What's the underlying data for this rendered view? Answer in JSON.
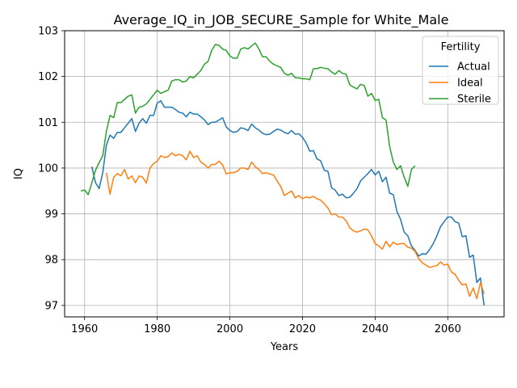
{
  "chart_data": {
    "type": "line",
    "title": "Average_IQ_in_JOB_SECURE_Sample for White_Male",
    "xlabel": "Years",
    "ylabel": "IQ",
    "xlim": [
      1954.5,
      2075.5
    ],
    "ylim": [
      96.75,
      103
    ],
    "x_ticks": [
      1960,
      1980,
      2000,
      2020,
      2040,
      2060
    ],
    "y_ticks": [
      97,
      98,
      99,
      100,
      101,
      102,
      103
    ],
    "grid": true,
    "legend": {
      "title": "Fertility",
      "placement": "top-right"
    },
    "series": [
      {
        "name": "Actual",
        "color": "#1f77b4",
        "points": [
          [
            1962,
            100.03
          ],
          [
            1963,
            99.68
          ],
          [
            1964,
            99.55
          ],
          [
            1965,
            99.9
          ],
          [
            1966,
            100.5
          ],
          [
            1967,
            100.72
          ],
          [
            1968,
            100.65
          ],
          [
            1969,
            100.78
          ],
          [
            1970,
            100.78
          ],
          [
            1971,
            100.88
          ],
          [
            1972,
            100.98
          ],
          [
            1973,
            101.08
          ],
          [
            1974,
            100.8
          ],
          [
            1975,
            100.98
          ],
          [
            1976,
            101.08
          ],
          [
            1977,
            100.98
          ],
          [
            1978,
            101.15
          ],
          [
            1979,
            101.15
          ],
          [
            1980,
            101.42
          ],
          [
            1981,
            101.47
          ],
          [
            1982,
            101.33
          ],
          [
            1983,
            101.33
          ],
          [
            1984,
            101.33
          ],
          [
            1985,
            101.28
          ],
          [
            1986,
            101.22
          ],
          [
            1987,
            101.2
          ],
          [
            1988,
            101.12
          ],
          [
            1989,
            101.22
          ],
          [
            1990,
            101.18
          ],
          [
            1991,
            101.18
          ],
          [
            1992,
            101.12
          ],
          [
            1993,
            101.05
          ],
          [
            1994,
            100.95
          ],
          [
            1995,
            101.0
          ],
          [
            1996,
            101.0
          ],
          [
            1997,
            101.05
          ],
          [
            1998,
            101.1
          ],
          [
            1999,
            100.9
          ],
          [
            2000,
            100.82
          ],
          [
            2001,
            100.78
          ],
          [
            2002,
            100.8
          ],
          [
            2003,
            100.88
          ],
          [
            2004,
            100.86
          ],
          [
            2005,
            100.82
          ],
          [
            2006,
            100.96
          ],
          [
            2007,
            100.88
          ],
          [
            2008,
            100.83
          ],
          [
            2009,
            100.76
          ],
          [
            2010,
            100.73
          ],
          [
            2011,
            100.74
          ],
          [
            2012,
            100.8
          ],
          [
            2013,
            100.85
          ],
          [
            2014,
            100.83
          ],
          [
            2015,
            100.78
          ],
          [
            2016,
            100.75
          ],
          [
            2017,
            100.82
          ],
          [
            2018,
            100.74
          ],
          [
            2019,
            100.75
          ],
          [
            2020,
            100.67
          ],
          [
            2021,
            100.55
          ],
          [
            2022,
            100.37
          ],
          [
            2023,
            100.38
          ],
          [
            2024,
            100.2
          ],
          [
            2025,
            100.16
          ],
          [
            2026,
            99.95
          ],
          [
            2027,
            99.93
          ],
          [
            2028,
            99.57
          ],
          [
            2029,
            99.52
          ],
          [
            2030,
            99.4
          ],
          [
            2031,
            99.43
          ],
          [
            2032,
            99.35
          ],
          [
            2033,
            99.36
          ],
          [
            2034,
            99.45
          ],
          [
            2035,
            99.55
          ],
          [
            2036,
            99.72
          ],
          [
            2037,
            99.8
          ],
          [
            2038,
            99.88
          ],
          [
            2039,
            99.97
          ],
          [
            2040,
            99.85
          ],
          [
            2041,
            99.93
          ],
          [
            2042,
            99.7
          ],
          [
            2043,
            99.8
          ],
          [
            2044,
            99.45
          ],
          [
            2045,
            99.42
          ],
          [
            2046,
            99.05
          ],
          [
            2047,
            98.88
          ],
          [
            2048,
            98.6
          ],
          [
            2049,
            98.52
          ],
          [
            2050,
            98.3
          ],
          [
            2051,
            98.2
          ],
          [
            2052,
            98.08
          ],
          [
            2053,
            98.13
          ],
          [
            2054,
            98.12
          ],
          [
            2055,
            98.22
          ],
          [
            2056,
            98.35
          ],
          [
            2057,
            98.52
          ],
          [
            2058,
            98.72
          ],
          [
            2059,
            98.83
          ],
          [
            2060,
            98.93
          ],
          [
            2061,
            98.93
          ],
          [
            2062,
            98.83
          ],
          [
            2063,
            98.8
          ],
          [
            2064,
            98.5
          ],
          [
            2065,
            98.52
          ],
          [
            2066,
            98.05
          ],
          [
            2067,
            98.1
          ],
          [
            2068,
            97.5
          ],
          [
            2069,
            97.6
          ],
          [
            2070,
            97.0
          ]
        ]
      },
      {
        "name": "Ideal",
        "color": "#ff7f0e",
        "points": [
          [
            1966,
            99.9
          ],
          [
            1967,
            99.43
          ],
          [
            1968,
            99.8
          ],
          [
            1969,
            99.88
          ],
          [
            1970,
            99.83
          ],
          [
            1971,
            99.97
          ],
          [
            1972,
            99.76
          ],
          [
            1973,
            99.83
          ],
          [
            1974,
            99.68
          ],
          [
            1975,
            99.83
          ],
          [
            1976,
            99.8
          ],
          [
            1977,
            99.67
          ],
          [
            1978,
            100.0
          ],
          [
            1979,
            100.1
          ],
          [
            1980,
            100.15
          ],
          [
            1981,
            100.27
          ],
          [
            1982,
            100.23
          ],
          [
            1983,
            100.25
          ],
          [
            1984,
            100.33
          ],
          [
            1985,
            100.27
          ],
          [
            1986,
            100.3
          ],
          [
            1987,
            100.27
          ],
          [
            1988,
            100.18
          ],
          [
            1989,
            100.37
          ],
          [
            1990,
            100.23
          ],
          [
            1991,
            100.27
          ],
          [
            1992,
            100.13
          ],
          [
            1993,
            100.08
          ],
          [
            1994,
            100.0
          ],
          [
            1995,
            100.08
          ],
          [
            1996,
            100.08
          ],
          [
            1997,
            100.15
          ],
          [
            1998,
            100.07
          ],
          [
            1999,
            99.87
          ],
          [
            2000,
            99.9
          ],
          [
            2001,
            99.9
          ],
          [
            2002,
            99.93
          ],
          [
            2003,
            100.0
          ],
          [
            2004,
            100.0
          ],
          [
            2005,
            99.97
          ],
          [
            2006,
            100.13
          ],
          [
            2007,
            100.03
          ],
          [
            2008,
            99.97
          ],
          [
            2009,
            99.88
          ],
          [
            2010,
            99.9
          ],
          [
            2011,
            99.87
          ],
          [
            2012,
            99.85
          ],
          [
            2013,
            99.72
          ],
          [
            2014,
            99.6
          ],
          [
            2015,
            99.4
          ],
          [
            2016,
            99.45
          ],
          [
            2017,
            99.5
          ],
          [
            2018,
            99.35
          ],
          [
            2019,
            99.4
          ],
          [
            2020,
            99.33
          ],
          [
            2021,
            99.37
          ],
          [
            2022,
            99.35
          ],
          [
            2023,
            99.38
          ],
          [
            2024,
            99.33
          ],
          [
            2025,
            99.3
          ],
          [
            2026,
            99.22
          ],
          [
            2027,
            99.13
          ],
          [
            2028,
            98.98
          ],
          [
            2029,
            99.0
          ],
          [
            2030,
            98.93
          ],
          [
            2031,
            98.93
          ],
          [
            2032,
            98.85
          ],
          [
            2033,
            98.7
          ],
          [
            2034,
            98.63
          ],
          [
            2035,
            98.6
          ],
          [
            2036,
            98.63
          ],
          [
            2037,
            98.67
          ],
          [
            2038,
            98.65
          ],
          [
            2039,
            98.52
          ],
          [
            2040,
            98.35
          ],
          [
            2041,
            98.3
          ],
          [
            2042,
            98.23
          ],
          [
            2043,
            98.4
          ],
          [
            2044,
            98.28
          ],
          [
            2045,
            98.38
          ],
          [
            2046,
            98.33
          ],
          [
            2047,
            98.35
          ],
          [
            2048,
            98.35
          ],
          [
            2049,
            98.27
          ],
          [
            2050,
            98.25
          ],
          [
            2051,
            98.18
          ],
          [
            2052,
            98.02
          ],
          [
            2053,
            97.93
          ],
          [
            2054,
            97.88
          ],
          [
            2055,
            97.83
          ],
          [
            2056,
            97.85
          ],
          [
            2057,
            97.87
          ],
          [
            2058,
            97.95
          ],
          [
            2059,
            97.88
          ],
          [
            2060,
            97.9
          ],
          [
            2061,
            97.73
          ],
          [
            2062,
            97.68
          ],
          [
            2063,
            97.55
          ],
          [
            2064,
            97.45
          ],
          [
            2065,
            97.47
          ],
          [
            2066,
            97.2
          ],
          [
            2067,
            97.38
          ],
          [
            2068,
            97.15
          ],
          [
            2069,
            97.5
          ],
          [
            2070,
            97.25
          ]
        ]
      },
      {
        "name": "Sterile",
        "color": "#2ca02c",
        "points": [
          [
            1959,
            99.5
          ],
          [
            1960,
            99.52
          ],
          [
            1961,
            99.42
          ],
          [
            1962,
            99.68
          ],
          [
            1963,
            99.95
          ],
          [
            1964,
            100.12
          ],
          [
            1965,
            100.27
          ],
          [
            1966,
            100.8
          ],
          [
            1967,
            101.15
          ],
          [
            1968,
            101.1
          ],
          [
            1969,
            101.43
          ],
          [
            1970,
            101.43
          ],
          [
            1971,
            101.5
          ],
          [
            1972,
            101.57
          ],
          [
            1973,
            101.6
          ],
          [
            1974,
            101.2
          ],
          [
            1975,
            101.33
          ],
          [
            1976,
            101.35
          ],
          [
            1977,
            101.4
          ],
          [
            1978,
            101.5
          ],
          [
            1979,
            101.6
          ],
          [
            1980,
            101.7
          ],
          [
            1981,
            101.63
          ],
          [
            1982,
            101.67
          ],
          [
            1983,
            101.7
          ],
          [
            1984,
            101.9
          ],
          [
            1985,
            101.93
          ],
          [
            1986,
            101.93
          ],
          [
            1987,
            101.88
          ],
          [
            1988,
            101.9
          ],
          [
            1989,
            102.0
          ],
          [
            1990,
            101.97
          ],
          [
            1991,
            102.05
          ],
          [
            1992,
            102.13
          ],
          [
            1993,
            102.27
          ],
          [
            1994,
            102.33
          ],
          [
            1995,
            102.57
          ],
          [
            1996,
            102.7
          ],
          [
            1997,
            102.68
          ],
          [
            1998,
            102.6
          ],
          [
            1999,
            102.57
          ],
          [
            2000,
            102.45
          ],
          [
            2001,
            102.4
          ],
          [
            2002,
            102.4
          ],
          [
            2003,
            102.6
          ],
          [
            2004,
            102.63
          ],
          [
            2005,
            102.6
          ],
          [
            2006,
            102.67
          ],
          [
            2007,
            102.73
          ],
          [
            2008,
            102.6
          ],
          [
            2009,
            102.43
          ],
          [
            2010,
            102.43
          ],
          [
            2011,
            102.33
          ],
          [
            2012,
            102.27
          ],
          [
            2013,
            102.23
          ],
          [
            2014,
            102.2
          ],
          [
            2015,
            102.07
          ],
          [
            2016,
            102.03
          ],
          [
            2017,
            102.07
          ],
          [
            2018,
            101.97
          ],
          [
            2019,
            101.97
          ],
          [
            2020,
            101.95
          ],
          [
            2021,
            101.95
          ],
          [
            2022,
            101.93
          ],
          [
            2023,
            102.17
          ],
          [
            2024,
            102.17
          ],
          [
            2025,
            102.2
          ],
          [
            2026,
            102.18
          ],
          [
            2027,
            102.17
          ],
          [
            2028,
            102.1
          ],
          [
            2029,
            102.05
          ],
          [
            2030,
            102.13
          ],
          [
            2031,
            102.07
          ],
          [
            2032,
            102.05
          ],
          [
            2033,
            101.82
          ],
          [
            2034,
            101.77
          ],
          [
            2035,
            101.73
          ],
          [
            2036,
            101.83
          ],
          [
            2037,
            101.8
          ],
          [
            2038,
            101.57
          ],
          [
            2039,
            101.63
          ],
          [
            2040,
            101.48
          ],
          [
            2041,
            101.5
          ],
          [
            2042,
            101.1
          ],
          [
            2043,
            101.05
          ],
          [
            2044,
            100.47
          ],
          [
            2045,
            100.13
          ],
          [
            2046,
            99.97
          ],
          [
            2047,
            100.05
          ],
          [
            2048,
            99.8
          ],
          [
            2049,
            99.6
          ],
          [
            2050,
            99.97
          ],
          [
            2051,
            100.05
          ]
        ]
      }
    ]
  }
}
